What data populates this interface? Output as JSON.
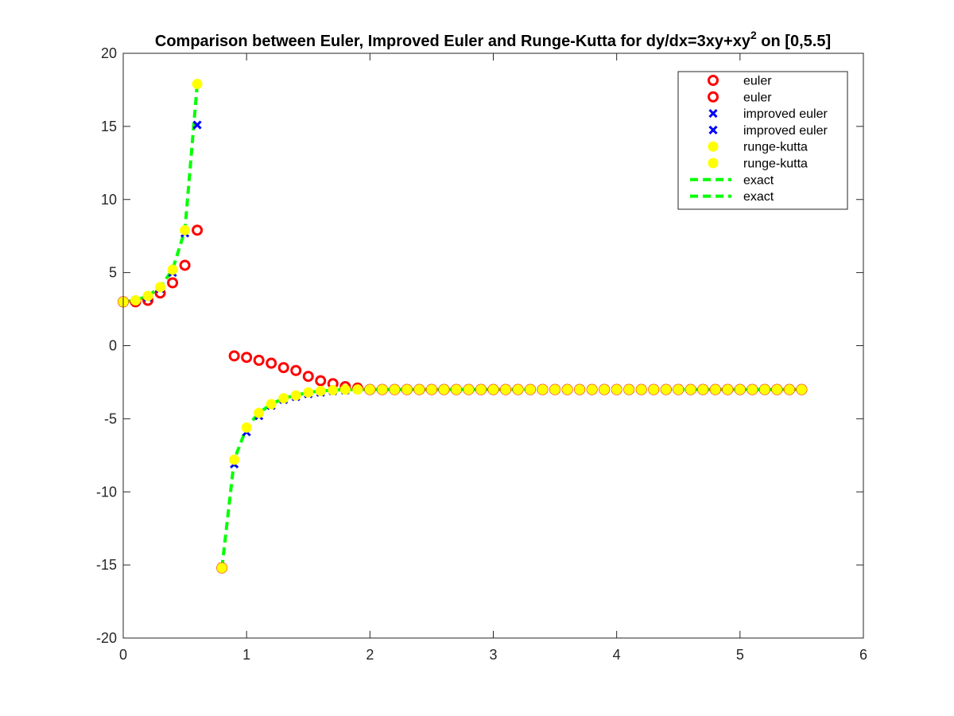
{
  "chart_data": {
    "type": "line",
    "title": "Comparison between Euler, Improved Euler and Runge-Kutta for dy/dx=3xy+xy",
    "title_superscript": "2",
    "title_suffix": " on [0,5.5]",
    "xlabel": "",
    "ylabel": "",
    "xlim": [
      0,
      6
    ],
    "ylim": [
      -20,
      20
    ],
    "x_ticks": [
      0,
      1,
      2,
      3,
      4,
      5,
      6
    ],
    "y_ticks": [
      -20,
      -15,
      -10,
      -5,
      0,
      5,
      10,
      15,
      20
    ],
    "grid": false,
    "legend_position": "top-right",
    "series": [
      {
        "name": "euler",
        "style": "circle-marker",
        "color": "#ff0000",
        "segments": [
          {
            "x": [
              0,
              0.1,
              0.2,
              0.3,
              0.4,
              0.5,
              0.6
            ],
            "y": [
              3.0,
              3.0,
              3.1,
              3.6,
              4.3,
              5.5,
              7.9
            ]
          },
          {
            "x": [
              0.8,
              0.9,
              1.0,
              1.1,
              1.2,
              1.3,
              1.4,
              1.5,
              1.6,
              1.7,
              1.8,
              1.9,
              2.0,
              2.1,
              2.2,
              2.3,
              2.4,
              2.5,
              2.6,
              2.7,
              2.8,
              2.9,
              3.0,
              3.1,
              3.2,
              3.3,
              3.4,
              3.5,
              3.6,
              3.7,
              3.8,
              3.9,
              4.0,
              4.1,
              4.2,
              4.3,
              4.4,
              4.5,
              4.6,
              4.7,
              4.8,
              4.9,
              5.0,
              5.1,
              5.2,
              5.3,
              5.4,
              5.5
            ],
            "y": [
              -15.2,
              -0.7,
              -0.8,
              -1.0,
              -1.2,
              -1.5,
              -1.7,
              -2.1,
              -2.4,
              -2.6,
              -2.8,
              -2.9,
              -3.0,
              -3.0,
              -3.0,
              -3.0,
              -3.0,
              -3.0,
              -3.0,
              -3.0,
              -3.0,
              -3.0,
              -3.0,
              -3.0,
              -3.0,
              -3.0,
              -3.0,
              -3.0,
              -3.0,
              -3.0,
              -3.0,
              -3.0,
              -3.0,
              -3.0,
              -3.0,
              -3.0,
              -3.0,
              -3.0,
              -3.0,
              -3.0,
              -3.0,
              -3.0,
              -3.0,
              -3.0,
              -3.0,
              -3.0,
              -3.0,
              -3.0
            ]
          }
        ]
      },
      {
        "name": "improved euler",
        "style": "x-marker",
        "color": "#0000ff",
        "segments": [
          {
            "x": [
              0,
              0.1,
              0.2,
              0.3,
              0.4,
              0.5,
              0.6
            ],
            "y": [
              3.0,
              3.1,
              3.3,
              3.9,
              5.0,
              7.7,
              15.1
            ]
          },
          {
            "x": [
              0.8,
              0.9,
              1.0,
              1.1,
              1.2,
              1.3,
              1.4,
              1.5,
              1.6,
              1.7,
              1.8,
              1.9,
              2.0,
              2.1,
              2.2,
              2.3,
              2.4,
              2.5,
              2.6,
              2.7,
              2.8,
              2.9,
              3.0,
              3.1,
              3.2,
              3.3,
              3.4,
              3.5,
              3.6,
              3.7,
              3.8,
              3.9,
              4.0,
              4.1,
              4.2,
              4.3,
              4.4,
              4.5,
              4.6,
              4.7,
              4.8,
              4.9,
              5.0,
              5.1,
              5.2,
              5.3,
              5.4,
              5.5
            ],
            "y": [
              -15.2,
              -8.1,
              -5.9,
              -4.8,
              -4.1,
              -3.7,
              -3.5,
              -3.3,
              -3.2,
              -3.1,
              -3.05,
              -3.0,
              -3.0,
              -3.0,
              -3.0,
              -3.0,
              -3.0,
              -3.0,
              -3.0,
              -3.0,
              -3.0,
              -3.0,
              -3.0,
              -3.0,
              -3.0,
              -3.0,
              -3.0,
              -3.0,
              -3.0,
              -3.0,
              -3.0,
              -3.0,
              -3.0,
              -3.0,
              -3.0,
              -3.0,
              -3.0,
              -3.0,
              -3.0,
              -3.0,
              -3.0,
              -3.0,
              -3.0,
              -3.0,
              -3.0,
              -3.0,
              -3.0,
              -3.0
            ]
          }
        ]
      },
      {
        "name": "runge-kutta",
        "style": "filled-circle-marker",
        "color": "#ffff00",
        "segments": [
          {
            "x": [
              0,
              0.1,
              0.2,
              0.3,
              0.4,
              0.5,
              0.6
            ],
            "y": [
              3.0,
              3.1,
              3.4,
              4.0,
              5.2,
              7.9,
              17.9
            ]
          },
          {
            "x": [
              0.8,
              0.9,
              1.0,
              1.1,
              1.2,
              1.3,
              1.4,
              1.5,
              1.6,
              1.7,
              1.8,
              1.9,
              2.0,
              2.1,
              2.2,
              2.3,
              2.4,
              2.5,
              2.6,
              2.7,
              2.8,
              2.9,
              3.0,
              3.1,
              3.2,
              3.3,
              3.4,
              3.5,
              3.6,
              3.7,
              3.8,
              3.9,
              4.0,
              4.1,
              4.2,
              4.3,
              4.4,
              4.5,
              4.6,
              4.7,
              4.8,
              4.9,
              5.0,
              5.1,
              5.2,
              5.3,
              5.4,
              5.5
            ],
            "y": [
              -15.2,
              -7.8,
              -5.6,
              -4.6,
              -4.0,
              -3.6,
              -3.4,
              -3.2,
              -3.1,
              -3.05,
              -3.0,
              -3.0,
              -3.0,
              -3.0,
              -3.0,
              -3.0,
              -3.0,
              -3.0,
              -3.0,
              -3.0,
              -3.0,
              -3.0,
              -3.0,
              -3.0,
              -3.0,
              -3.0,
              -3.0,
              -3.0,
              -3.0,
              -3.0,
              -3.0,
              -3.0,
              -3.0,
              -3.0,
              -3.0,
              -3.0,
              -3.0,
              -3.0,
              -3.0,
              -3.0,
              -3.0,
              -3.0,
              -3.0,
              -3.0,
              -3.0,
              -3.0,
              -3.0,
              -3.0
            ]
          }
        ]
      },
      {
        "name": "exact",
        "style": "dashed-line",
        "color": "#00ff00",
        "segments": [
          {
            "x": [
              0,
              0.1,
              0.2,
              0.3,
              0.4,
              0.5,
              0.6
            ],
            "y": [
              3.0,
              3.1,
              3.4,
              4.0,
              5.2,
              7.9,
              17.9
            ]
          },
          {
            "x": [
              0.8,
              0.9,
              1.0,
              1.1,
              1.2,
              1.3,
              1.4,
              1.5,
              1.6,
              1.7,
              1.8,
              1.9,
              2.0,
              2.1,
              5.5
            ],
            "y": [
              -15.2,
              -7.8,
              -5.6,
              -4.6,
              -4.0,
              -3.6,
              -3.4,
              -3.2,
              -3.1,
              -3.05,
              -3.0,
              -3.0,
              -3.0,
              -3.0,
              -3.0
            ]
          }
        ]
      }
    ],
    "legend_entries": [
      "euler",
      "euler",
      "improved euler",
      "improved euler",
      "runge-kutta",
      "runge-kutta",
      "exact",
      "exact"
    ],
    "legend_styles": [
      "circle-marker",
      "circle-marker",
      "x-marker",
      "x-marker",
      "filled-circle-marker",
      "filled-circle-marker",
      "dashed-line",
      "dashed-line"
    ],
    "legend_colors": [
      "#ff0000",
      "#ff0000",
      "#0000ff",
      "#0000ff",
      "#ffff00",
      "#ffff00",
      "#00ff00",
      "#00ff00"
    ]
  }
}
